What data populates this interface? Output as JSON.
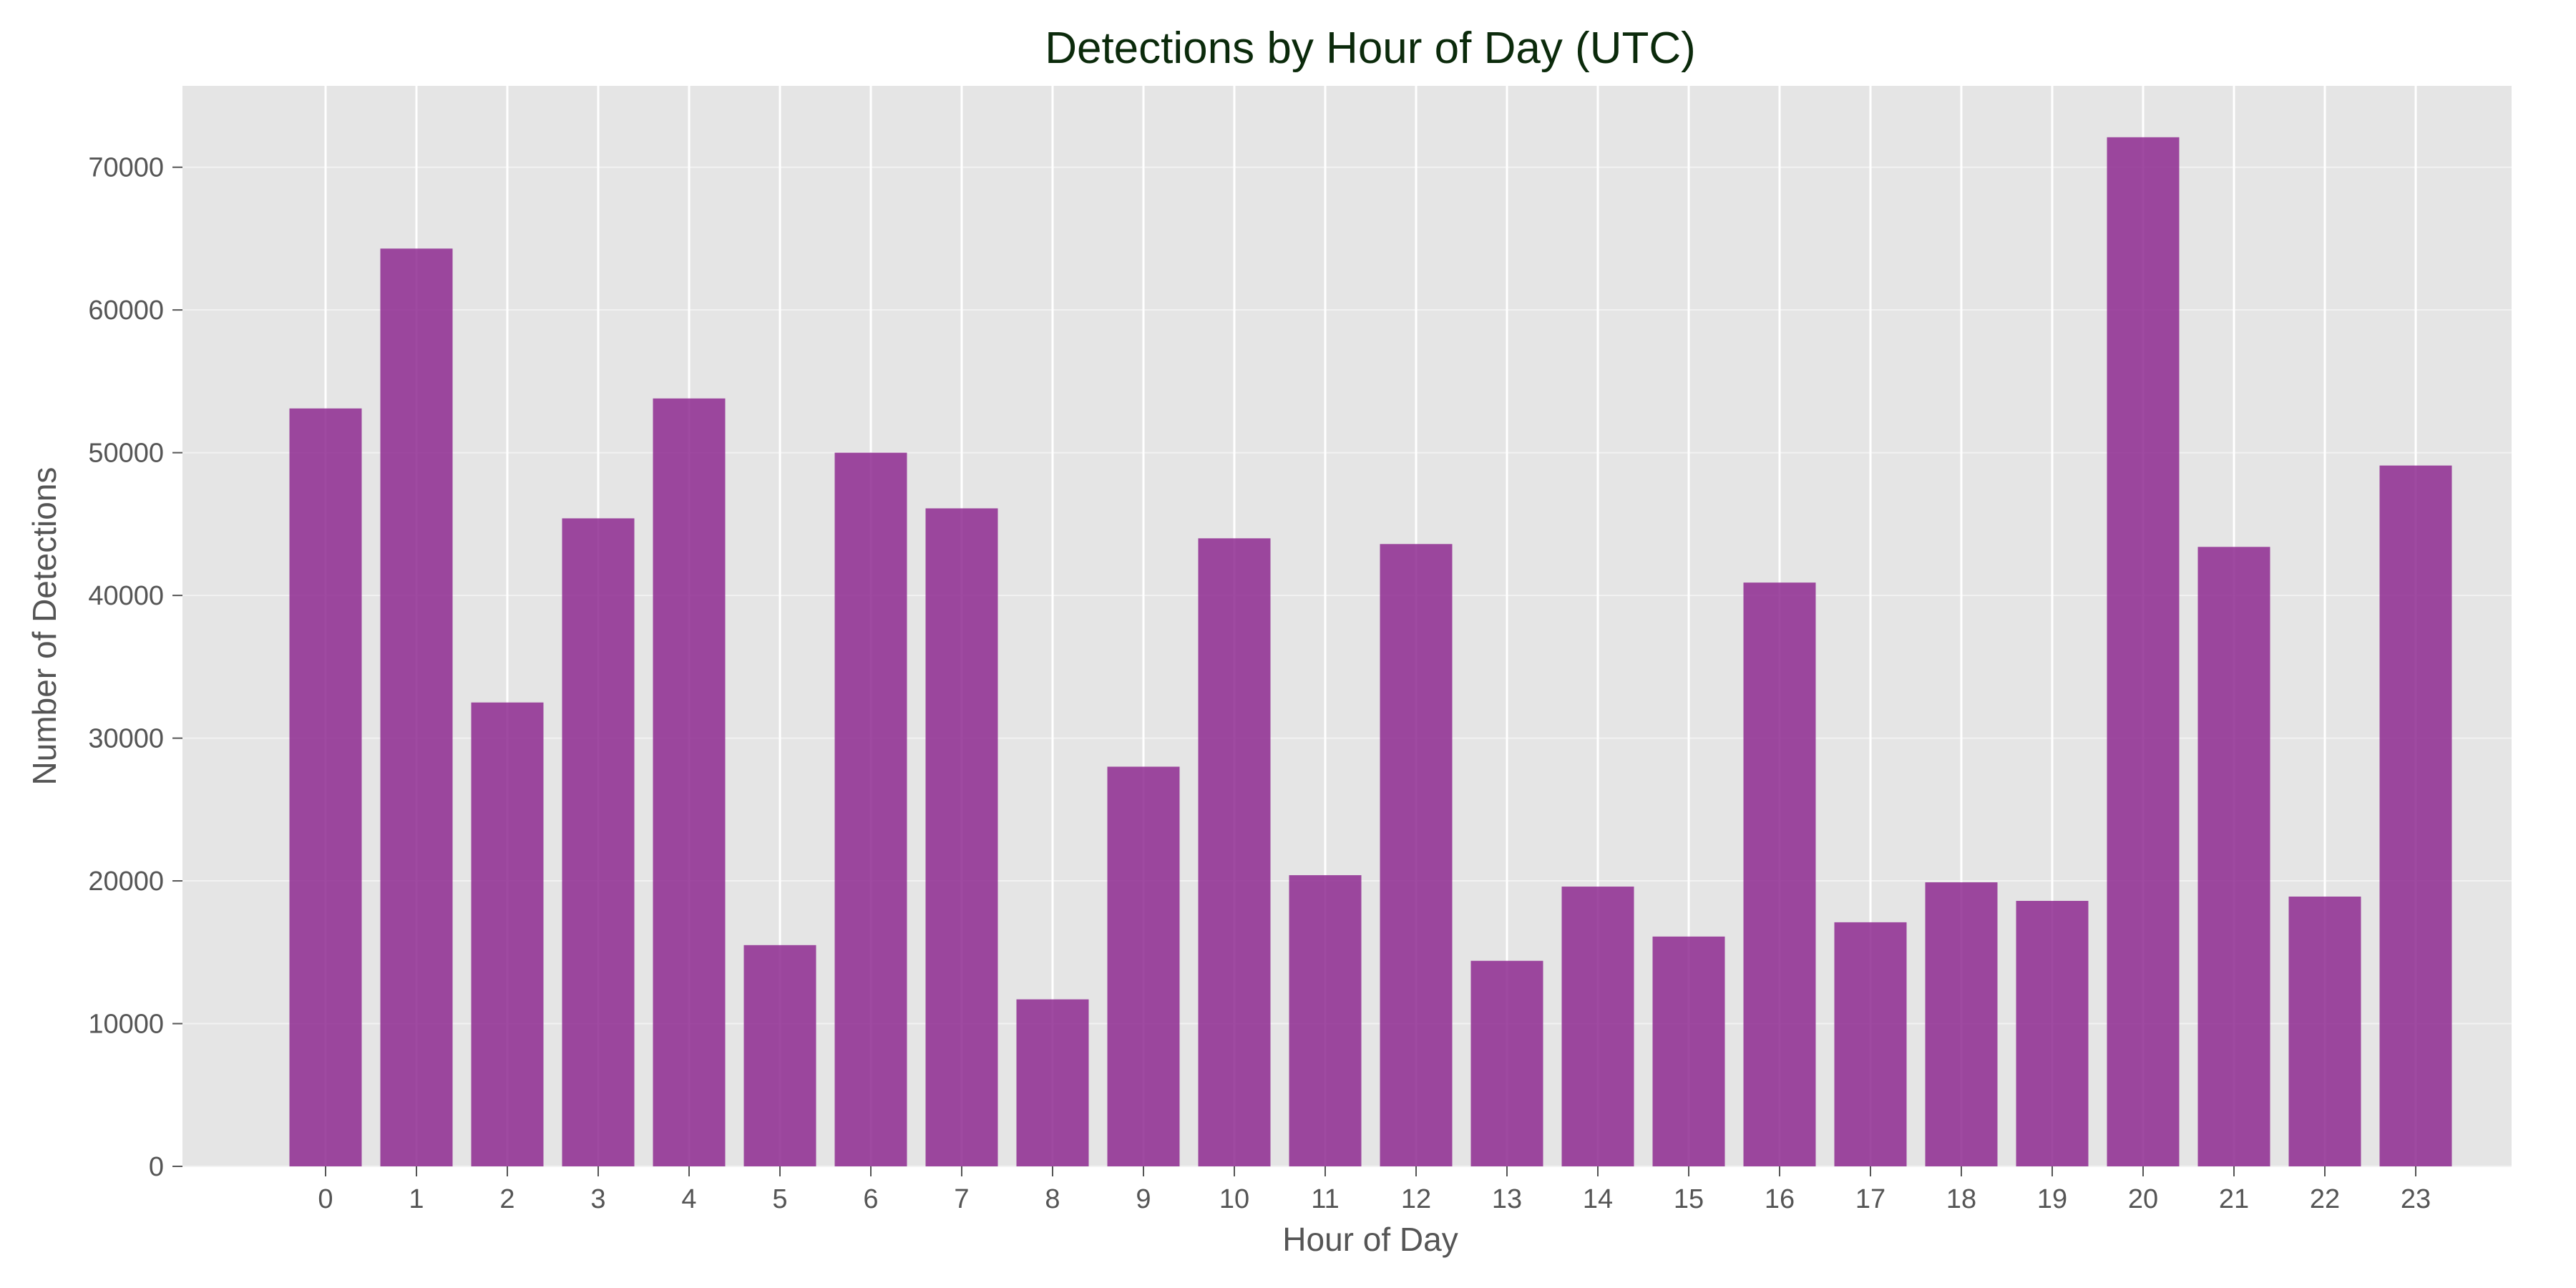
{
  "chart_data": {
    "type": "bar",
    "title": "Detections by Hour of Day (UTC)",
    "xlabel": "Hour of Day",
    "ylabel": "Number of Detections",
    "categories": [
      "0",
      "1",
      "2",
      "3",
      "4",
      "5",
      "6",
      "7",
      "8",
      "9",
      "10",
      "11",
      "12",
      "13",
      "14",
      "15",
      "16",
      "17",
      "18",
      "19",
      "20",
      "21",
      "22",
      "23"
    ],
    "values": [
      53100,
      64300,
      32500,
      45400,
      53800,
      15500,
      50000,
      46100,
      11700,
      28000,
      44000,
      20400,
      43600,
      14400,
      19600,
      16100,
      40900,
      17100,
      19900,
      18600,
      72100,
      43400,
      18900,
      49100
    ],
    "ylim": [
      0,
      75700
    ],
    "yticks": [
      0,
      10000,
      20000,
      30000,
      40000,
      50000,
      60000,
      70000
    ],
    "grid": true,
    "colors": {
      "bar": "#8e2a91",
      "plot_background": "#e5e5e5",
      "grid": "#ffffff"
    }
  }
}
